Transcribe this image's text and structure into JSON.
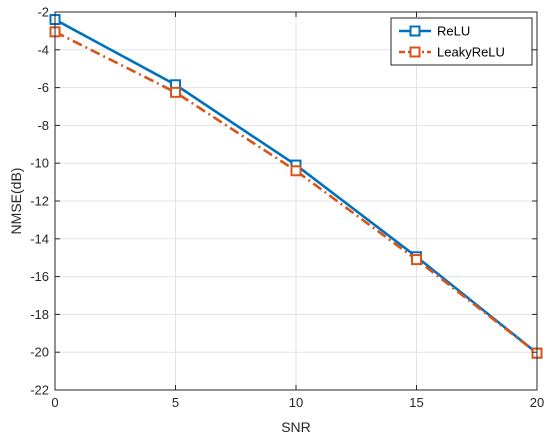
{
  "chart_data": {
    "type": "line",
    "title": "",
    "xlabel": "SNR",
    "ylabel": "NMSE(dB)",
    "x": [
      0,
      5,
      10,
      15,
      20
    ],
    "xlim": [
      0,
      20
    ],
    "ylim": [
      -22,
      -2
    ],
    "xticks": [
      "0",
      "5",
      "10",
      "15",
      "20"
    ],
    "yticks": [
      "-2",
      "-4",
      "-6",
      "-8",
      "-10",
      "-12",
      "-14",
      "-16",
      "-18",
      "-20",
      "-22"
    ],
    "grid": true,
    "legend_position": "top-right",
    "series": [
      {
        "name": "ReLU",
        "values": [
          -2.4,
          -5.85,
          -10.1,
          -14.95,
          -20.05
        ],
        "color": "#0072BD",
        "line_style": "solid",
        "marker": "square"
      },
      {
        "name": "LeakyReLU",
        "values": [
          -3.05,
          -6.25,
          -10.4,
          -15.1,
          -20.05
        ],
        "color": "#D95319",
        "line_style": "dash-dot",
        "marker": "square"
      }
    ]
  }
}
